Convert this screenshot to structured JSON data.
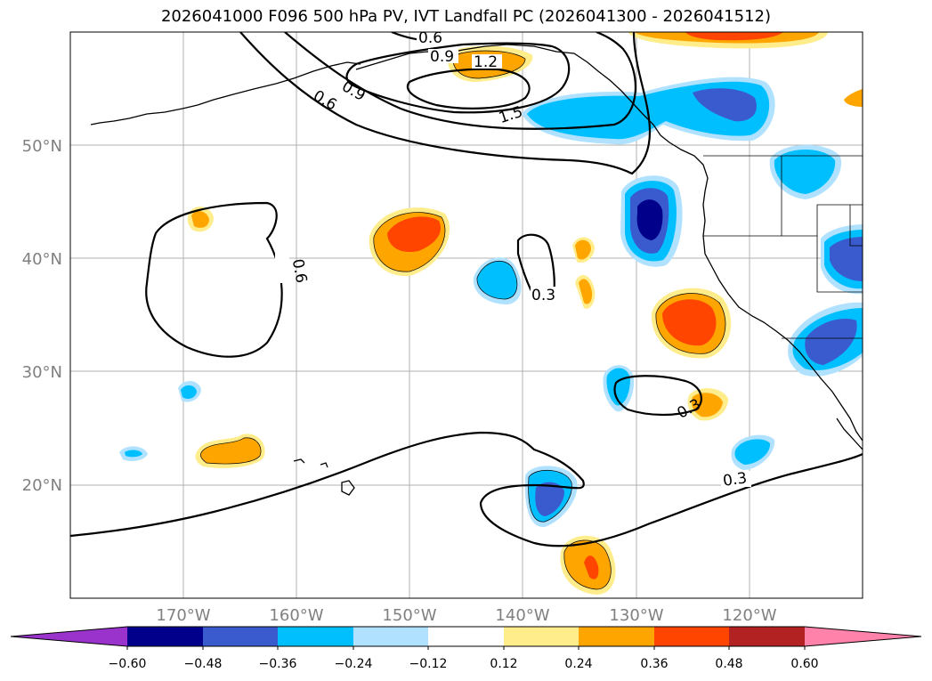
{
  "title": "2026041000 F096 500 hPa PV, IVT Landfall PC (2026041300 - 2026041512)",
  "map": {
    "projection": "PlateCarree",
    "lon_range": [
      -180,
      -110
    ],
    "lat_range": [
      10,
      60
    ],
    "grid": true,
    "lon_ticks": [
      {
        "lon": -170,
        "label": "170°W"
      },
      {
        "lon": -160,
        "label": "160°W"
      },
      {
        "lon": -150,
        "label": "150°W"
      },
      {
        "lon": -140,
        "label": "140°W"
      },
      {
        "lon": -130,
        "label": "130°W"
      },
      {
        "lon": -120,
        "label": "120°W"
      }
    ],
    "lat_ticks": [
      {
        "lat": 20,
        "label": "20°N"
      },
      {
        "lat": 30,
        "label": "30°N"
      },
      {
        "lat": 40,
        "label": "40°N"
      },
      {
        "lat": 50,
        "label": "50°N"
      }
    ],
    "contour_labels": [
      "0.6",
      "0.9",
      "1.2",
      "1.5",
      "0.6",
      "0.9",
      "0.6",
      "0.3",
      "0.3",
      "0.3"
    ]
  },
  "colorbar": {
    "extend": "both",
    "colors": [
      "#9933cc",
      "#00008b",
      "#3a5bcd",
      "#00bfff",
      "#b0e2ff",
      "#ffffff",
      "#ffec8b",
      "#ffa500",
      "#ff4500",
      "#b22222",
      "#ff82ab"
    ],
    "ticks": [
      "−0.60",
      "−0.48",
      "−0.36",
      "−0.24",
      "−0.12",
      "0.12",
      "0.24",
      "0.36",
      "0.48",
      "0.60"
    ]
  }
}
